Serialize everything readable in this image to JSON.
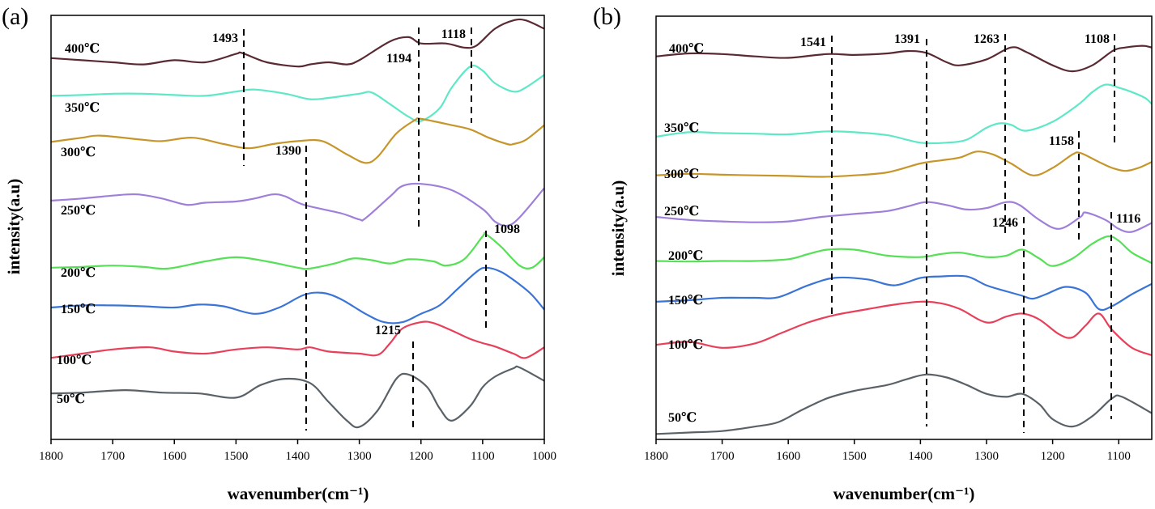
{
  "chart_data": [
    {
      "type": "line",
      "panel_label": "(a)",
      "xlabel": "wavenumber(cm⁻¹)",
      "ylabel": "intensity(a.u)",
      "xlim": [
        1800,
        1000
      ],
      "x_reversed": true,
      "x_ticks": [
        1800,
        1700,
        1600,
        1500,
        1400,
        1300,
        1200,
        1100,
        1000
      ],
      "y_ticks": false,
      "grid": false,
      "legend": "none",
      "series": [
        {
          "name": "400℃",
          "color": "#5a2a33",
          "x": [
            1800,
            1750,
            1700,
            1650,
            1600,
            1550,
            1500,
            1490,
            1450,
            1400,
            1380,
            1350,
            1320,
            1300,
            1250,
            1220,
            1200,
            1160,
            1130,
            1110,
            1080,
            1050,
            1030,
            1000
          ],
          "y": [
            8.6,
            8.55,
            8.5,
            8.45,
            8.55,
            8.5,
            8.7,
            8.72,
            8.5,
            8.4,
            8.45,
            8.5,
            8.45,
            8.55,
            9.0,
            9.1,
            8.95,
            8.95,
            8.85,
            8.9,
            9.3,
            9.5,
            9.5,
            9.3
          ]
        },
        {
          "name": "350℃",
          "color": "#5fe8c8",
          "x": [
            1800,
            1750,
            1700,
            1650,
            1600,
            1550,
            1500,
            1470,
            1420,
            1380,
            1350,
            1300,
            1280,
            1250,
            1220,
            1200,
            1170,
            1150,
            1120,
            1100,
            1080,
            1050,
            1030,
            1000
          ],
          "y": [
            7.7,
            7.72,
            7.75,
            7.75,
            7.72,
            7.7,
            7.8,
            7.85,
            7.75,
            7.62,
            7.65,
            7.75,
            7.78,
            7.5,
            7.2,
            7.1,
            7.4,
            7.9,
            8.4,
            8.3,
            8.0,
            7.8,
            7.9,
            8.2
          ]
        },
        {
          "name": "300℃",
          "color": "#c7962a",
          "x": [
            1800,
            1750,
            1720,
            1650,
            1620,
            1570,
            1520,
            1480,
            1440,
            1400,
            1360,
            1320,
            1290,
            1270,
            1240,
            1210,
            1200,
            1150,
            1120,
            1090,
            1060,
            1050,
            1030,
            1000
          ],
          "y": [
            6.6,
            6.7,
            6.75,
            6.65,
            6.62,
            6.7,
            6.55,
            6.45,
            6.55,
            6.62,
            6.62,
            6.3,
            6.1,
            6.25,
            6.8,
            7.12,
            7.15,
            7.0,
            6.9,
            6.7,
            6.55,
            6.55,
            6.65,
            7.0
          ]
        },
        {
          "name": "250℃",
          "color": "#9f7fd9",
          "x": [
            1800,
            1750,
            1700,
            1660,
            1620,
            1580,
            1550,
            1500,
            1470,
            1440,
            1420,
            1390,
            1330,
            1300,
            1290,
            1250,
            1230,
            1200,
            1150,
            1100,
            1080,
            1060,
            1040,
            1000
          ],
          "y": [
            5.2,
            5.25,
            5.32,
            5.35,
            5.25,
            5.1,
            5.15,
            5.18,
            5.25,
            5.35,
            5.3,
            5.1,
            4.9,
            4.75,
            4.78,
            5.3,
            5.55,
            5.6,
            5.45,
            5.0,
            4.7,
            4.6,
            4.8,
            5.5
          ]
        },
        {
          "name": "200℃",
          "color": "#56e056",
          "x": [
            1800,
            1750,
            1700,
            1650,
            1610,
            1550,
            1500,
            1450,
            1400,
            1380,
            1340,
            1310,
            1280,
            1250,
            1220,
            1180,
            1160,
            1130,
            1100,
            1095,
            1070,
            1040,
            1020,
            1000
          ],
          "y": [
            3.6,
            3.62,
            3.65,
            3.62,
            3.58,
            3.75,
            3.85,
            3.75,
            3.6,
            3.58,
            3.7,
            3.82,
            3.78,
            3.7,
            3.8,
            3.75,
            3.65,
            3.8,
            4.35,
            4.4,
            4.1,
            3.65,
            3.6,
            3.85
          ]
        },
        {
          "name": "150℃",
          "color": "#3a74d6",
          "x": [
            1800,
            1750,
            1700,
            1650,
            1600,
            1560,
            1520,
            1470,
            1430,
            1390,
            1360,
            1330,
            1290,
            1260,
            1230,
            1200,
            1170,
            1140,
            1110,
            1095,
            1070,
            1040,
            1020,
            1000
          ],
          "y": [
            2.65,
            2.7,
            2.7,
            2.68,
            2.65,
            2.72,
            2.68,
            2.5,
            2.65,
            2.95,
            3.0,
            2.85,
            2.5,
            2.3,
            2.3,
            2.5,
            2.7,
            3.1,
            3.5,
            3.6,
            3.5,
            3.2,
            2.95,
            2.6
          ]
        },
        {
          "name": "100℃",
          "color": "#e8405a",
          "x": [
            1800,
            1750,
            1700,
            1640,
            1600,
            1550,
            1500,
            1450,
            1400,
            1380,
            1350,
            1300,
            1270,
            1250,
            1230,
            1200,
            1180,
            1150,
            1120,
            1100,
            1080,
            1050,
            1030,
            1000
          ],
          "y": [
            1.45,
            1.55,
            1.65,
            1.7,
            1.6,
            1.55,
            1.65,
            1.7,
            1.65,
            1.7,
            1.6,
            1.55,
            1.52,
            1.8,
            2.15,
            2.3,
            2.28,
            2.1,
            1.9,
            1.8,
            1.72,
            1.55,
            1.45,
            1.7
          ]
        },
        {
          "name": "50℃",
          "color": "#5a6268",
          "x": [
            1800,
            1750,
            1680,
            1620,
            1560,
            1500,
            1460,
            1420,
            1380,
            1350,
            1320,
            1300,
            1270,
            1240,
            1220,
            1190,
            1170,
            1150,
            1120,
            1100,
            1080,
            1050,
            1040,
            1000
          ],
          "y": [
            0.6,
            0.62,
            0.68,
            0.62,
            0.6,
            0.5,
            0.8,
            0.95,
            0.85,
            0.4,
            -0.05,
            -0.2,
            0.2,
            0.95,
            1.05,
            0.75,
            0.25,
            -0.05,
            0.3,
            0.75,
            1.0,
            1.2,
            1.22,
            0.9
          ]
        }
      ],
      "annotations": [
        {
          "label": "1493",
          "x": 1493
        },
        {
          "label": "1194",
          "x": 1194
        },
        {
          "label": "1118",
          "x": 1118
        },
        {
          "label": "1390",
          "x": 1390
        },
        {
          "label": "1098",
          "x": 1098
        },
        {
          "label": "1215",
          "x": 1215
        }
      ]
    },
    {
      "type": "line",
      "panel_label": "(b)",
      "xlabel": "wavenumber(cm⁻¹)",
      "ylabel": "intensity(a.u)",
      "xlim": [
        1800,
        1050
      ],
      "x_reversed": true,
      "x_ticks": [
        1800,
        1700,
        1600,
        1500,
        1400,
        1300,
        1200,
        1100
      ],
      "y_ticks": false,
      "grid": false,
      "legend": "none",
      "series": [
        {
          "name": "400℃",
          "color": "#5a2a33",
          "x": [
            1800,
            1750,
            1700,
            1650,
            1600,
            1541,
            1500,
            1450,
            1420,
            1391,
            1360,
            1340,
            1300,
            1263,
            1240,
            1200,
            1170,
            1140,
            1108,
            1090,
            1070,
            1060,
            1050
          ],
          "y": [
            9.5,
            9.6,
            9.58,
            9.5,
            9.45,
            9.58,
            9.55,
            9.6,
            9.68,
            9.62,
            9.3,
            9.2,
            9.4,
            9.8,
            9.65,
            9.2,
            9.0,
            9.2,
            9.7,
            9.8,
            9.85,
            9.85,
            9.8
          ]
        },
        {
          "name": "350℃",
          "color": "#5fe8c8",
          "x": [
            1800,
            1750,
            1700,
            1650,
            1600,
            1541,
            1500,
            1450,
            1400,
            1360,
            1330,
            1300,
            1280,
            1263,
            1240,
            1200,
            1160,
            1140,
            1120,
            1100,
            1080,
            1060,
            1050
          ],
          "y": [
            6.8,
            6.95,
            6.92,
            6.9,
            6.88,
            6.98,
            6.95,
            6.85,
            6.6,
            6.6,
            6.7,
            7.1,
            7.25,
            7.2,
            7.0,
            7.3,
            7.9,
            8.3,
            8.55,
            8.45,
            8.3,
            8.1,
            7.9
          ]
        },
        {
          "name": "300℃",
          "color": "#c7962a",
          "x": [
            1800,
            1750,
            1700,
            1650,
            1600,
            1550,
            1500,
            1450,
            1400,
            1370,
            1340,
            1315,
            1290,
            1263,
            1230,
            1200,
            1170,
            1158,
            1130,
            1110,
            1090,
            1070,
            1050
          ],
          "y": [
            5.5,
            5.55,
            5.52,
            5.5,
            5.48,
            5.45,
            5.5,
            5.6,
            5.9,
            6.0,
            6.1,
            6.3,
            6.2,
            5.9,
            5.5,
            5.75,
            6.2,
            6.25,
            5.95,
            5.75,
            5.65,
            5.75,
            5.95
          ]
        },
        {
          "name": "250℃",
          "color": "#9f7fd9",
          "x": [
            1800,
            1750,
            1700,
            1650,
            1600,
            1550,
            1500,
            1450,
            1420,
            1391,
            1360,
            1330,
            1300,
            1270,
            1250,
            1220,
            1190,
            1158,
            1150,
            1120,
            1100,
            1080,
            1050
          ],
          "y": [
            4.1,
            4.0,
            3.95,
            3.92,
            3.95,
            4.1,
            4.2,
            4.3,
            4.45,
            4.6,
            4.5,
            4.35,
            4.4,
            4.6,
            4.5,
            4.0,
            3.7,
            4.1,
            4.25,
            4.0,
            3.7,
            3.6,
            3.9
          ]
        },
        {
          "name": "200℃",
          "color": "#56e056",
          "x": [
            1800,
            1750,
            1700,
            1650,
            1600,
            1570,
            1541,
            1500,
            1450,
            1400,
            1370,
            1340,
            1300,
            1270,
            1246,
            1220,
            1200,
            1170,
            1140,
            1116,
            1100,
            1080,
            1050
          ],
          "y": [
            2.62,
            2.6,
            2.62,
            2.62,
            2.68,
            2.85,
            3.0,
            3.0,
            2.8,
            2.75,
            2.85,
            2.9,
            2.75,
            2.8,
            3.0,
            2.7,
            2.45,
            2.7,
            3.2,
            3.45,
            3.3,
            2.9,
            2.55
          ]
        },
        {
          "name": "150℃",
          "color": "#3a74d6",
          "x": [
            1800,
            1750,
            1700,
            1650,
            1615,
            1570,
            1530,
            1480,
            1440,
            1400,
            1370,
            1330,
            1300,
            1270,
            1246,
            1230,
            1210,
            1180,
            1150,
            1130,
            1110,
            1080,
            1050
          ],
          "y": [
            1.25,
            1.3,
            1.38,
            1.38,
            1.4,
            1.8,
            2.05,
            2.0,
            1.8,
            2.05,
            2.1,
            2.1,
            1.8,
            1.6,
            1.45,
            1.35,
            1.5,
            1.75,
            1.55,
            1.0,
            1.1,
            1.5,
            1.85
          ]
        },
        {
          "name": "100℃",
          "color": "#e8405a",
          "x": [
            1800,
            1750,
            1700,
            1650,
            1610,
            1570,
            1530,
            1480,
            1440,
            1400,
            1370,
            1340,
            1300,
            1270,
            1246,
            1220,
            1190,
            1170,
            1150,
            1130,
            1110,
            1080,
            1050
          ],
          "y": [
            -0.2,
            -0.1,
            -0.3,
            -0.15,
            0.2,
            0.55,
            0.8,
            1.0,
            1.15,
            1.25,
            1.2,
            1.0,
            0.55,
            0.75,
            0.85,
            0.65,
            0.15,
            0.05,
            0.45,
            0.85,
            0.3,
            -0.3,
            -0.55
          ]
        },
        {
          "name": "50℃",
          "color": "#5a6268",
          "x": [
            1800,
            1750,
            1700,
            1650,
            1615,
            1580,
            1541,
            1500,
            1450,
            1420,
            1391,
            1360,
            1330,
            1300,
            1270,
            1246,
            1220,
            1200,
            1170,
            1140,
            1110,
            1095,
            1050
          ],
          "y": [
            -3.2,
            -3.15,
            -3.1,
            -2.95,
            -2.8,
            -2.4,
            -2.0,
            -1.75,
            -1.55,
            -1.35,
            -1.2,
            -1.3,
            -1.55,
            -1.85,
            -1.95,
            -1.85,
            -2.2,
            -2.7,
            -2.95,
            -2.6,
            -2.0,
            -1.95,
            -2.5
          ]
        }
      ],
      "annotations": [
        {
          "label": "1541",
          "x": 1541
        },
        {
          "label": "1391",
          "x": 1391
        },
        {
          "label": "1263",
          "x": 1263
        },
        {
          "label": "1108",
          "x": 1108
        },
        {
          "label": "1158",
          "x": 1158
        },
        {
          "label": "1246",
          "x": 1246
        },
        {
          "label": "1116",
          "x": 1116
        }
      ]
    }
  ]
}
